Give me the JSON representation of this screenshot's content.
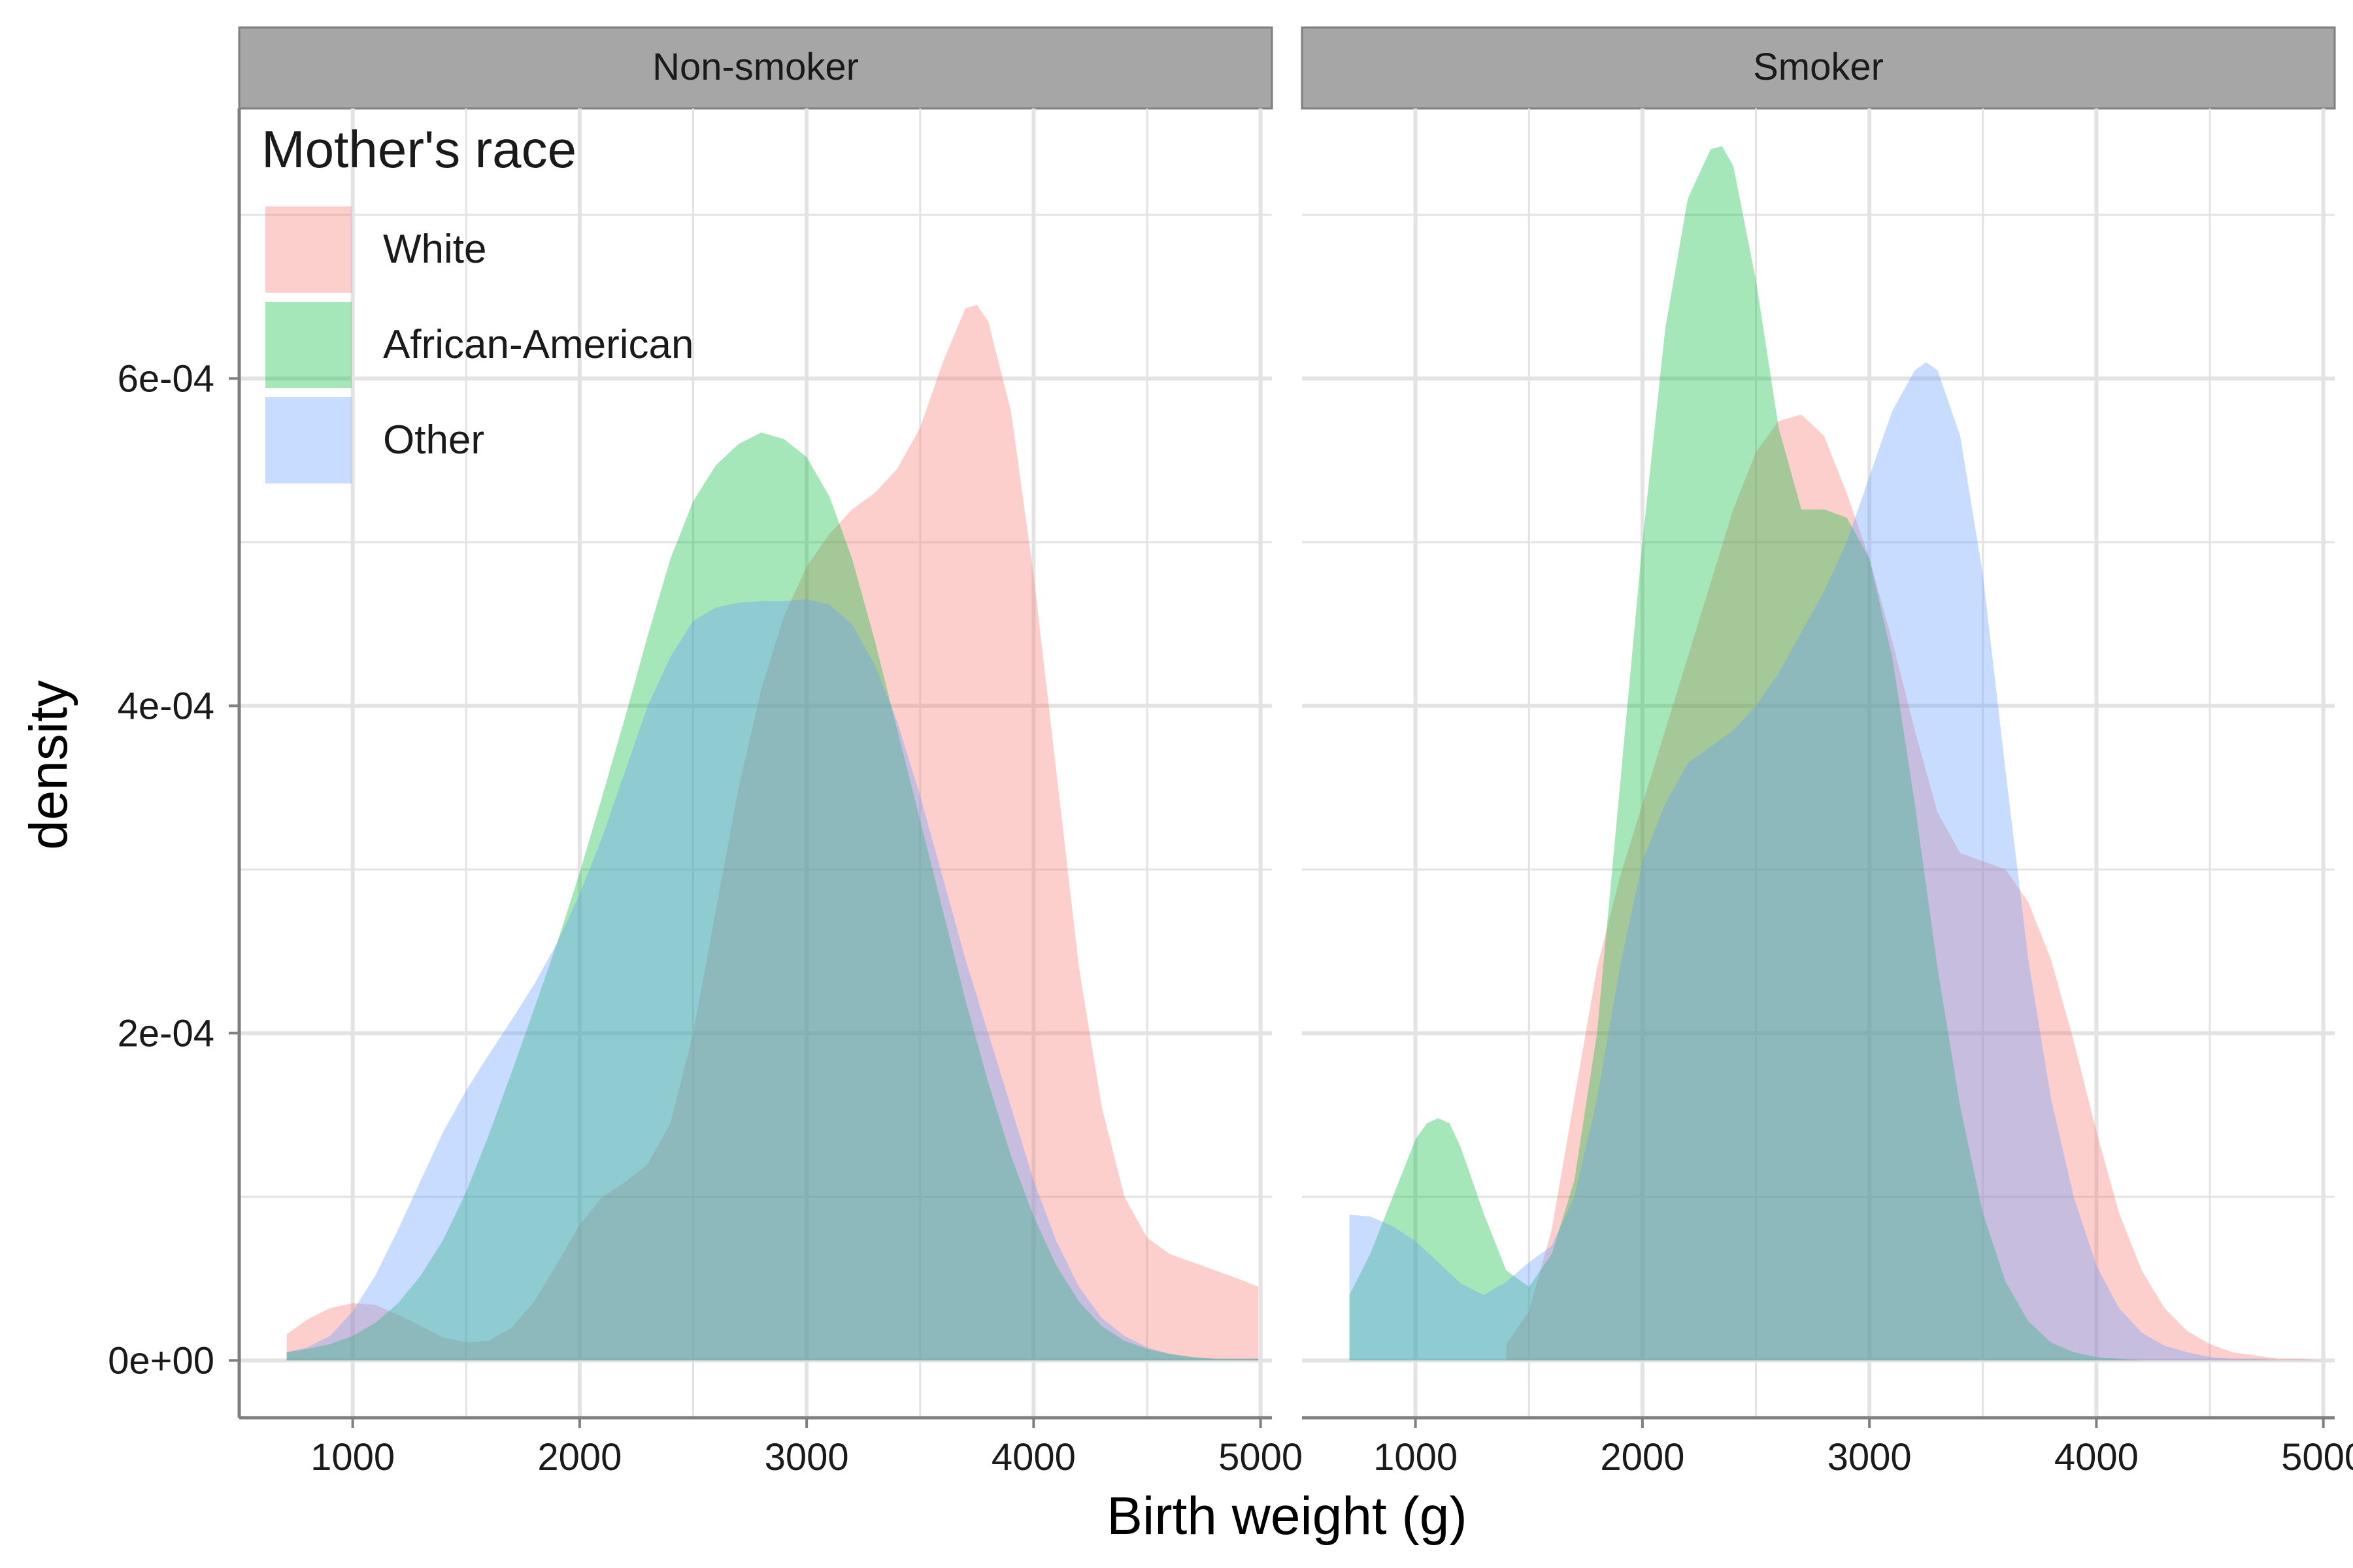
{
  "chart_data": {
    "type": "area",
    "xlabel": "Birth weight (g)",
    "ylabel": "density",
    "xlim": [
      500,
      5050
    ],
    "ylim": [
      -3.5e-05,
      0.000765
    ],
    "x_ticks": [
      1000,
      2000,
      3000,
      4000,
      5000
    ],
    "y_ticks": [
      0,
      0.0002,
      0.0004,
      0.0006
    ],
    "y_tick_labels": [
      "0e+00",
      "2e-04",
      "4e-04",
      "6e-04"
    ],
    "legend": {
      "title": "Mother's race",
      "position": "top-left",
      "entries": [
        "White",
        "African-American",
        "Other"
      ]
    },
    "colors": {
      "White": "#F8766D",
      "African-American": "#00BA38",
      "Other": "#619CFF",
      "strip_fill": "#A6A6A6",
      "grid": "#E3E3E3"
    },
    "series_opacity": 0.35,
    "panels": [
      {
        "label": "Non-smoker",
        "series": [
          {
            "name": "White",
            "x": [
              709,
              800,
              900,
              1000,
              1100,
              1200,
              1300,
              1400,
              1500,
              1600,
              1700,
              1800,
              1900,
              2000,
              2100,
              2200,
              2300,
              2400,
              2500,
              2600,
              2700,
              2800,
              2900,
              3000,
              3100,
              3200,
              3300,
              3400,
              3500,
              3600,
              3700,
              3750,
              3800,
              3900,
              4000,
              4100,
              4200,
              4300,
              4400,
              4500,
              4600,
              4700,
              4800,
              4900,
              4990
            ],
            "y": [
              1.6e-05,
              2.5e-05,
              3.2e-05,
              3.5e-05,
              3.4e-05,
              2.8e-05,
              2.1e-05,
              1.4e-05,
              1.1e-05,
              1.2e-05,
              2e-05,
              3.6e-05,
              5.9e-05,
              8.3e-05,
              0.0001,
              0.000109,
              0.00012,
              0.000145,
              0.0002,
              0.000275,
              0.00035,
              0.00041,
              0.000455,
              0.000485,
              0.000505,
              0.00052,
              0.00053,
              0.000545,
              0.00057,
              0.00061,
              0.000643,
              0.000645,
              0.000635,
              0.00058,
              0.00048,
              0.00036,
              0.00024,
              0.000155,
              0.0001,
              7.5e-05,
              6.5e-05,
              6e-05,
              5.5e-05,
              5e-05,
              4.5e-05
            ]
          },
          {
            "name": "African-American",
            "x": [
              709,
              800,
              900,
              1000,
              1100,
              1200,
              1300,
              1400,
              1500,
              1600,
              1700,
              1800,
              1900,
              2000,
              2100,
              2200,
              2300,
              2400,
              2500,
              2600,
              2700,
              2800,
              2900,
              3000,
              3100,
              3200,
              3300,
              3400,
              3500,
              3600,
              3700,
              3800,
              3900,
              4000,
              4100,
              4200,
              4300,
              4400,
              4500,
              4600,
              4700,
              4800,
              4900,
              4990
            ],
            "y": [
              5e-06,
              7e-06,
              1e-05,
              1.5e-05,
              2.3e-05,
              3.5e-05,
              5.2e-05,
              7.4e-05,
              0.000103,
              0.000138,
              0.000176,
              0.000215,
              0.000255,
              0.000298,
              0.000345,
              0.000393,
              0.000443,
              0.00049,
              0.000525,
              0.000547,
              0.00056,
              0.000567,
              0.000563,
              0.000552,
              0.000528,
              0.00049,
              0.00044,
              0.000385,
              0.00033,
              0.000275,
              0.00022,
              0.00017,
              0.000125,
              8.8e-05,
              5.8e-05,
              3.6e-05,
              2.1e-05,
              1.2e-05,
              7e-06,
              4e-06,
              2e-06,
              1e-06,
              1e-06,
              1e-06
            ]
          },
          {
            "name": "Other",
            "x": [
              709,
              800,
              900,
              1000,
              1100,
              1200,
              1300,
              1400,
              1500,
              1600,
              1700,
              1800,
              1900,
              2000,
              2100,
              2200,
              2300,
              2400,
              2500,
              2600,
              2700,
              2800,
              2900,
              3000,
              3100,
              3200,
              3300,
              3400,
              3500,
              3600,
              3700,
              3800,
              3900,
              4000,
              4100,
              4200,
              4300,
              4400,
              4500,
              4600,
              4700,
              4800,
              4900,
              4990
            ],
            "y": [
              5e-06,
              8e-06,
              1.5e-05,
              3e-05,
              5.2e-05,
              8e-05,
              0.00011,
              0.00014,
              0.000165,
              0.000187,
              0.000208,
              0.00023,
              0.000255,
              0.000285,
              0.00032,
              0.00036,
              0.0004,
              0.00043,
              0.000452,
              0.00046,
              0.000463,
              0.000464,
              0.000464,
              0.000465,
              0.000462,
              0.00045,
              0.000425,
              0.00039,
              0.000345,
              0.000295,
              0.000245,
              0.0002,
              0.000155,
              0.00011,
              7.3e-05,
              4.5e-05,
              2.6e-05,
              1.5e-05,
              8e-06,
              4e-06,
              2e-06,
              1e-06,
              1e-06,
              1e-06
            ]
          }
        ]
      },
      {
        "label": "Smoker",
        "series": [
          {
            "name": "White",
            "x": [
              1400,
              1500,
              1600,
              1700,
              1800,
              1900,
              2000,
              2100,
              2200,
              2300,
              2400,
              2500,
              2600,
              2700,
              2800,
              2900,
              3000,
              3100,
              3200,
              3300,
              3400,
              3500,
              3600,
              3700,
              3800,
              3900,
              4000,
              4100,
              4200,
              4300,
              4400,
              4500,
              4600,
              4700,
              4800,
              4900,
              5000
            ],
            "y": [
              1e-05,
              3e-05,
              8e-05,
              0.00016,
              0.00024,
              0.000295,
              0.00034,
              0.000385,
              0.00043,
              0.000475,
              0.00052,
              0.000555,
              0.000574,
              0.000578,
              0.000565,
              0.00053,
              0.00049,
              0.00044,
              0.000385,
              0.000335,
              0.00031,
              0.000305,
              0.0003,
              0.00028,
              0.000245,
              0.000195,
              0.00014,
              9e-05,
              5.5e-05,
              3.2e-05,
              1.8e-05,
              1e-05,
              5e-06,
              3e-06,
              1e-06,
              1e-06,
              0.0
            ]
          },
          {
            "name": "African-American",
            "x": [
              709,
              800,
              900,
              1000,
              1050,
              1100,
              1150,
              1200,
              1300,
              1400,
              1500,
              1600,
              1700,
              1800,
              1900,
              2000,
              2100,
              2200,
              2300,
              2350,
              2400,
              2500,
              2600,
              2700,
              2800,
              2900,
              3000,
              3100,
              3200,
              3300,
              3400,
              3500,
              3600,
              3700,
              3800,
              3900,
              4000,
              4100,
              4200
            ],
            "y": [
              4e-05,
              6.5e-05,
              0.0001,
              0.000135,
              0.000145,
              0.000148,
              0.000145,
              0.00013,
              9e-05,
              5.5e-05,
              4.5e-05,
              6.5e-05,
              0.00011,
              0.0002,
              0.00035,
              0.0005,
              0.00063,
              0.00071,
              0.00074,
              0.000742,
              0.00073,
              0.00066,
              0.00057,
              0.00052,
              0.00052,
              0.000515,
              0.00049,
              0.00043,
              0.00034,
              0.00024,
              0.000155,
              9e-05,
              4.8e-05,
              2.4e-05,
              1.1e-05,
              5e-06,
              2e-06,
              1e-06,
              0.0
            ]
          },
          {
            "name": "Other",
            "x": [
              709,
              800,
              900,
              1000,
              1100,
              1200,
              1300,
              1400,
              1500,
              1600,
              1700,
              1800,
              1900,
              2000,
              2100,
              2200,
              2300,
              2400,
              2500,
              2600,
              2700,
              2800,
              2900,
              3000,
              3100,
              3200,
              3250,
              3300,
              3400,
              3500,
              3600,
              3700,
              3800,
              3900,
              4000,
              4100,
              4200,
              4300,
              4400,
              4500,
              4600,
              4700,
              4800
            ],
            "y": [
              8.9e-05,
              8.8e-05,
              8.2e-05,
              7.3e-05,
              6e-05,
              4.7e-05,
              4e-05,
              4.8e-05,
              6e-05,
              7e-05,
              0.0001,
              0.00016,
              0.00024,
              0.000305,
              0.00034,
              0.000365,
              0.000375,
              0.000385,
              0.0004,
              0.00042,
              0.000445,
              0.00047,
              0.0005,
              0.00054,
              0.00058,
              0.000605,
              0.00061,
              0.000605,
              0.000565,
              0.00048,
              0.00036,
              0.000245,
              0.00016,
              0.0001,
              5.8e-05,
              3.2e-05,
              1.7e-05,
              9e-06,
              5e-06,
              2e-06,
              1e-06,
              1e-06,
              0.0
            ]
          }
        ]
      }
    ]
  }
}
